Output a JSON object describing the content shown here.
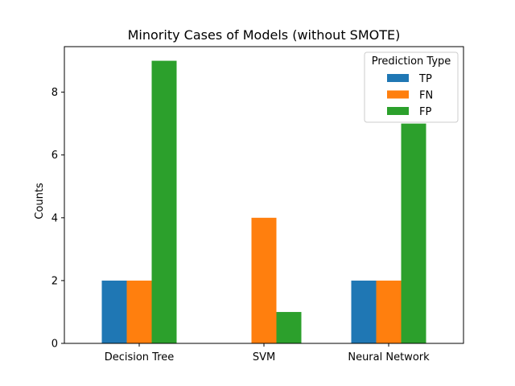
{
  "chart_data": {
    "type": "bar",
    "title": "Minority Cases of Models (without SMOTE)",
    "xlabel": "",
    "ylabel": "Counts",
    "categories": [
      "Decision Tree",
      "SVM",
      "Neural Network"
    ],
    "series": [
      {
        "name": "TP",
        "color": "#1f77b4",
        "values": [
          2,
          0,
          2
        ]
      },
      {
        "name": "FN",
        "color": "#ff7f0e",
        "values": [
          2,
          4,
          2
        ]
      },
      {
        "name": "FP",
        "color": "#2ca02c",
        "values": [
          9,
          1,
          7
        ]
      }
    ],
    "ylim": [
      0,
      9.45
    ],
    "yticks": [
      0,
      2,
      4,
      6,
      8
    ],
    "grid": false,
    "legend": {
      "title": "Prediction Type",
      "position": "top-right"
    }
  }
}
